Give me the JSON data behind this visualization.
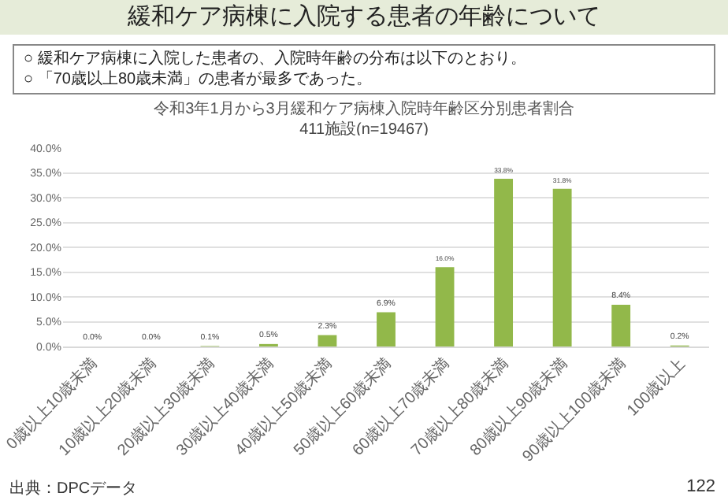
{
  "chart_data": {
    "type": "bar",
    "title": "緩和ケア病棟に入院する患者の年齢について",
    "subtitle": "令和3年1月から3月緩和ケア病棟入院時年齢区分別患者割合",
    "annotations": [
      "411施設(n=19467)",
      "○ 緩和ケア病棟に入院した患者の、入院時年齢の分布は以下のとおり。",
      "○ 「70歳以上80歳未満」の患者が最多であった。",
      "出典：DPCデータ",
      "122"
    ],
    "categories": [
      "0歳以上10歳未満",
      "10歳以上20歳未満",
      "20歳以上30歳未満",
      "30歳以上40歳未満",
      "40歳以上50歳未満",
      "50歳以上60歳未満",
      "60歳以上70歳未満",
      "70歳以上80歳未満",
      "80歳以上90歳未満",
      "90歳以上100歳未満",
      "100歳以上"
    ],
    "values": [
      0.0,
      0.0,
      0.1,
      0.5,
      2.3,
      6.9,
      16.0,
      33.8,
      31.8,
      8.4,
      0.2
    ],
    "value_labels": [
      "0.0%",
      "0.0%",
      "0.1%",
      "0.5%",
      "2.3%",
      "6.9%",
      "16.0%",
      "33.8%",
      "31.8%",
      "8.4%",
      "0.2%"
    ],
    "color": "#92b84a",
    "ylim": [
      0,
      40
    ],
    "yticks": [
      {
        "value": 0,
        "label": "0.0%"
      },
      {
        "value": 5,
        "label": "5.0%"
      },
      {
        "value": 10,
        "label": "10.0%"
      },
      {
        "value": 15,
        "label": "15.0%"
      },
      {
        "value": 20,
        "label": "20.0%"
      },
      {
        "value": 25,
        "label": "25.0%"
      },
      {
        "value": 30,
        "label": "30.0%"
      },
      {
        "value": 35,
        "label": "35.0%"
      },
      {
        "value": 40,
        "label": "40.0%"
      }
    ],
    "grid": "y"
  }
}
